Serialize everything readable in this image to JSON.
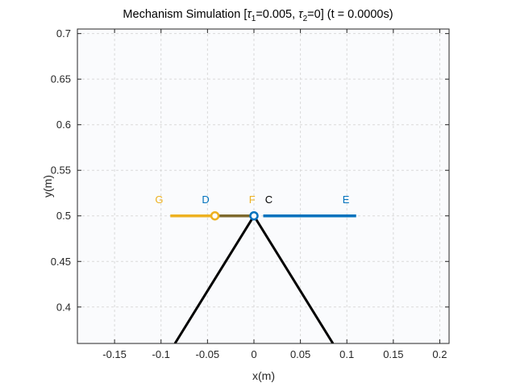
{
  "chart_data": {
    "type": "line",
    "title_main": "Mechanism Simulation [",
    "tau_symbol": "τ",
    "tau1_sub": "1",
    "tau1_value": "=0.005, ",
    "tau2_sub": "2",
    "tau2_value": "=0] (t = 0.0000s)",
    "xlabel": "x(m)",
    "ylabel": "y(m)",
    "xlim": [
      -0.19,
      0.21
    ],
    "ylim": [
      0.36,
      0.705
    ],
    "xticks": [
      -0.15,
      -0.1,
      -0.05,
      0,
      0.05,
      0.1,
      0.15,
      0.2
    ],
    "xtick_labels": [
      "-0.15",
      "-0.1",
      "-0.05",
      "0",
      "0.05",
      "0.1",
      "0.15",
      "0.2"
    ],
    "yticks": [
      0.4,
      0.45,
      0.5,
      0.55,
      0.6,
      0.65,
      0.7
    ],
    "ytick_labels": [
      "0.4",
      "0.45",
      "0.5",
      "0.55",
      "0.6",
      "0.65",
      "0.7"
    ],
    "grid": true,
    "series": [
      {
        "name": "",
        "color": "#000000",
        "width": 3,
        "x": [
          -0.085,
          0,
          0.085
        ],
        "y": [
          0.36,
          0.5,
          0.36
        ]
      },
      {
        "name": "",
        "color": "#EDB120",
        "width": 3.5,
        "x": [
          -0.09,
          0
        ],
        "y": [
          0.5,
          0.5
        ]
      },
      {
        "name": "",
        "color": "#7E6A2E",
        "width": 3.5,
        "x": [
          -0.04,
          0
        ],
        "y": [
          0.5,
          0.5
        ]
      },
      {
        "name": "",
        "color": "#0072BD",
        "width": 3.5,
        "x": [
          0.01,
          0.11
        ],
        "y": [
          0.5,
          0.5
        ]
      }
    ],
    "joints": [
      {
        "x": -0.042,
        "y": 0.5,
        "color": "#EDB120"
      },
      {
        "x": 0,
        "y": 0.5,
        "color": "#0072BD"
      }
    ],
    "point_labels": [
      {
        "text": "G",
        "x": -0.102,
        "y": 0.514,
        "color": "#EDB120"
      },
      {
        "text": "D",
        "x": -0.052,
        "y": 0.514,
        "color": "#0072BD"
      },
      {
        "text": "F",
        "x": -0.002,
        "y": 0.514,
        "color": "#EDB120"
      },
      {
        "text": "C",
        "x": 0.016,
        "y": 0.514,
        "color": "#000000"
      },
      {
        "text": "E",
        "x": 0.099,
        "y": 0.514,
        "color": "#0072BD"
      }
    ]
  }
}
